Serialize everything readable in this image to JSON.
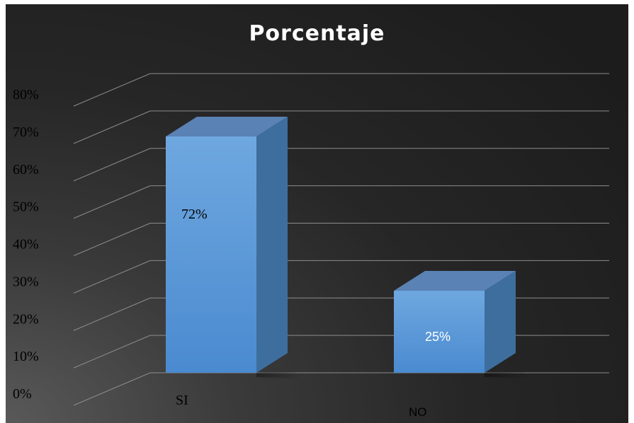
{
  "chart_data": {
    "type": "bar",
    "title": "Porcentaje",
    "categories": [
      "SI",
      "NO"
    ],
    "values": [
      72,
      25
    ],
    "data_labels": [
      "72%",
      "25%"
    ],
    "y_tick_labels": [
      "0%",
      "10%",
      "20%",
      "30%",
      "40%",
      "50%",
      "60%",
      "70%",
      "80%"
    ],
    "ylim": [
      0,
      80
    ],
    "grid": true,
    "three_d": true,
    "legend": "none"
  },
  "colors": {
    "background": "#262626",
    "bar_front": "#5b9bd5",
    "bar_top": "#5a82b4",
    "bar_side": "#3d6e9e",
    "gridline": "#8c8c8c",
    "title_text": "#ffffff",
    "axis_text": "#000000",
    "data_label_si": "#000000",
    "data_label_no": "#ffffff"
  }
}
